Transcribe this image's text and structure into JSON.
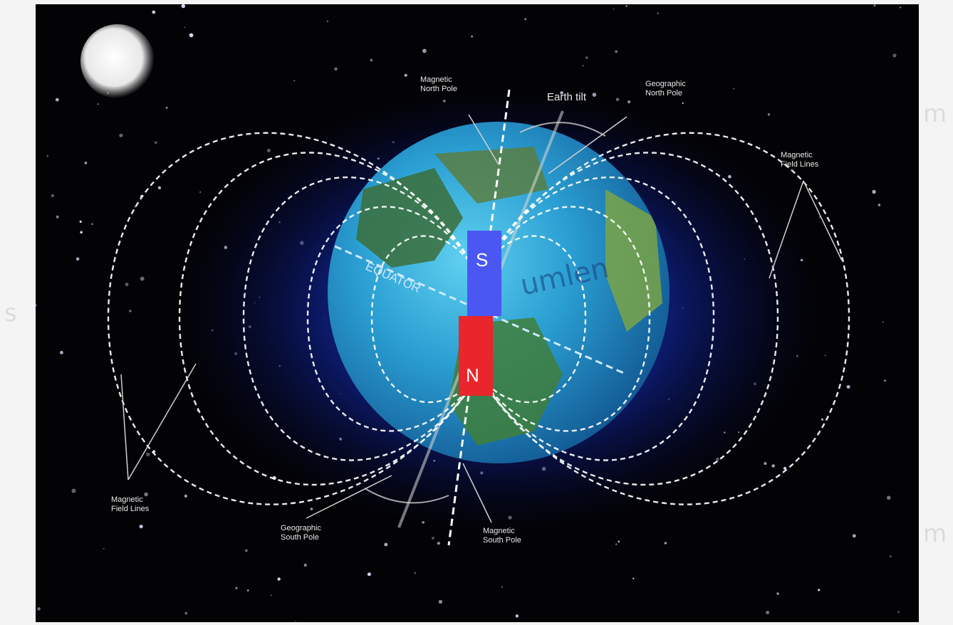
{
  "labels": {
    "magnetic_north_pole": "Magnetic\nNorth Pole",
    "earth_tilt": "Earth tilt",
    "geographic_north_pole": "Geographic\nNorth Pole",
    "magnetic_field_lines_right": "Magnetic\nField Lines",
    "magnetic_field_lines_left": "Magnetic\nField Lines",
    "geographic_south_pole": "Geographic\nSouth Pole",
    "magnetic_south_pole": "Magnetic\nSouth Pole",
    "equator": "EQUATOR",
    "magnet_south": "S",
    "magnet_north": "N"
  },
  "watermark": {
    "left": "s",
    "right_top": "m",
    "right_bottom": "m",
    "center": "umlen"
  },
  "colors": {
    "background": "#030306",
    "field_line": "#ffffff",
    "magnet_south": "#4b57f2",
    "magnet_north": "#e8262b",
    "earth_ocean": "#2ba7d6",
    "earth_land": "#3a7a3a",
    "glow": "#0b1a66"
  }
}
